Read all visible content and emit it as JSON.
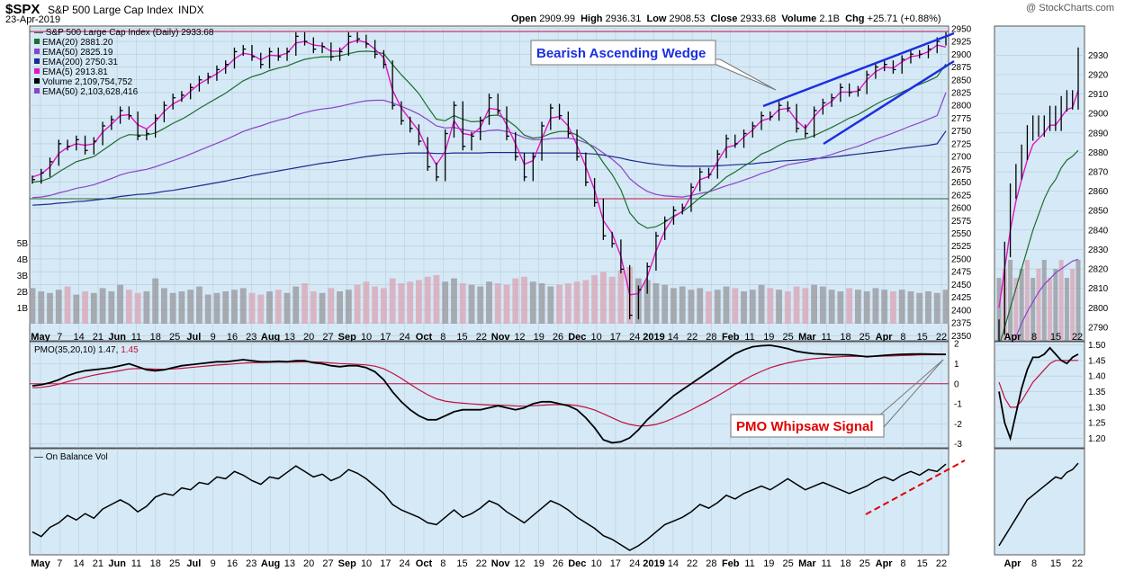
{
  "header": {
    "ticker": "$SPX",
    "name": "S&P 500 Large Cap Index",
    "exchange": "INDX",
    "date": "23-Apr-2019",
    "watermark": "@ StockCharts.com",
    "quote": {
      "open_label": "Open",
      "open": "2909.99",
      "high_label": "High",
      "high": "2936.31",
      "low_label": "Low",
      "low": "2908.53",
      "close_label": "Close",
      "close": "2933.68",
      "volume_label": "Volume",
      "volume": "2.1B",
      "chg_label": "Chg",
      "chg": "+25.71 (+0.88%)"
    }
  },
  "colors": {
    "panel_bg": "#d6e9f6",
    "grid": "#b6c9d8",
    "ema20": "#1a6e2e",
    "ema50": "#8a44c8",
    "ema200": "#1c2a8f",
    "ema5": "#e015c8",
    "volume": "#d9a7b8",
    "volume_dark": "#9a9aa0",
    "pmo": "#000000",
    "pmo_signal": "#c01040",
    "wedge": "#1b2fe0",
    "annotation_red": "#e00000",
    "support": "#1a6e2e",
    "resistance": "#c01040"
  },
  "legend": {
    "title": "S&P 500 Large Cap Index (Daily) 2933.68",
    "items": [
      {
        "label": "EMA(20) 2881.20",
        "color": "#1a6e2e"
      },
      {
        "label": "EMA(50) 2825.19",
        "color": "#8a44c8"
      },
      {
        "label": "EMA(200) 2750.31",
        "color": "#1c2a8f"
      },
      {
        "label": "EMA(5) 2913.81",
        "color": "#e015c8"
      },
      {
        "label": "Volume 2,109,754,752",
        "color": "#000000"
      },
      {
        "label": "EMA(50) 2,103,628,416",
        "color": "#8a44c8"
      }
    ]
  },
  "annotations": {
    "wedge_label": "Bearish Ascending Wedge",
    "whipsaw_label": "PMO Whipsaw Signal"
  },
  "pmo_legend": {
    "name": "PMO(35,20,10)",
    "value1": "1.47",
    "value2": "1.45"
  },
  "obv_legend": {
    "name": "On Balance Vol"
  },
  "chart_data": {
    "type": "line",
    "price_ylim": [
      2340,
      2955
    ],
    "price_ticks": [
      "2950",
      "2925",
      "2900",
      "2875",
      "2850",
      "2825",
      "2800",
      "2775",
      "2750",
      "2725",
      "2700",
      "2675",
      "2650",
      "2625",
      "2600",
      "2575",
      "2550",
      "2525",
      "2500",
      "2475",
      "2450",
      "2425",
      "2400",
      "2375",
      "2350"
    ],
    "volume_ticks": [
      "5B",
      "4B",
      "3B",
      "2B",
      "1B"
    ],
    "pmo_ticks": [
      "2",
      "1",
      "0",
      "-1",
      "-2",
      "-3"
    ],
    "pmo_ylim": [
      -3.2,
      2.1
    ],
    "x_labels": [
      "May",
      "7",
      "14",
      "21",
      "Jun",
      "11",
      "18",
      "25",
      "Jul",
      "9",
      "16",
      "23",
      "Aug",
      "13",
      "20",
      "27",
      "Sep",
      "10",
      "17",
      "24",
      "Oct",
      "8",
      "15",
      "22",
      "Nov",
      "12",
      "19",
      "26",
      "Dec",
      "10",
      "17",
      "24",
      "2019",
      "14",
      "22",
      "28",
      "Feb",
      "11",
      "19",
      "25",
      "Mar",
      "11",
      "18",
      "25",
      "Apr",
      "8",
      "15",
      "22"
    ],
    "close_series": [
      2655,
      2668,
      2690,
      2725,
      2720,
      2733,
      2712,
      2730,
      2760,
      2772,
      2790,
      2780,
      2740,
      2745,
      2775,
      2800,
      2815,
      2820,
      2835,
      2850,
      2856,
      2870,
      2880,
      2905,
      2910,
      2895,
      2880,
      2905,
      2895,
      2905,
      2935,
      2925,
      2910,
      2915,
      2895,
      2905,
      2935,
      2930,
      2920,
      2900,
      2880,
      2800,
      2770,
      2755,
      2730,
      2680,
      2660,
      2745,
      2800,
      2720,
      2740,
      2770,
      2815,
      2790,
      2740,
      2700,
      2660,
      2700,
      2760,
      2795,
      2780,
      2745,
      2700,
      2650,
      2610,
      2545,
      2530,
      2480,
      2390,
      2440,
      2485,
      2545,
      2575,
      2595,
      2600,
      2640,
      2670,
      2665,
      2705,
      2735,
      2725,
      2745,
      2760,
      2780,
      2778,
      2800,
      2795,
      2755,
      2745,
      2790,
      2805,
      2815,
      2835,
      2825,
      2830,
      2860,
      2875,
      2880,
      2870,
      2890,
      2900,
      2900,
      2910,
      2925,
      2935
    ],
    "ema5_series": [
      2660,
      2666,
      2680,
      2706,
      2718,
      2725,
      2722,
      2725,
      2748,
      2763,
      2780,
      2782,
      2762,
      2754,
      2768,
      2788,
      2803,
      2812,
      2828,
      2842,
      2852,
      2862,
      2874,
      2891,
      2902,
      2899,
      2889,
      2898,
      2897,
      2902,
      2922,
      2925,
      2918,
      2916,
      2906,
      2906,
      2922,
      2927,
      2923,
      2910,
      2893,
      2830,
      2795,
      2772,
      2750,
      2712,
      2684,
      2710,
      2770,
      2745,
      2742,
      2757,
      2794,
      2792,
      2762,
      2725,
      2685,
      2692,
      2735,
      2775,
      2778,
      2760,
      2722,
      2680,
      2635,
      2575,
      2550,
      2505,
      2430,
      2432,
      2465,
      2515,
      2555,
      2582,
      2593,
      2624,
      2655,
      2661,
      2690,
      2718,
      2722,
      2738,
      2752,
      2770,
      2775,
      2792,
      2794,
      2770,
      2755,
      2778,
      2797,
      2808,
      2826,
      2826,
      2828,
      2850,
      2866,
      2875,
      2873,
      2885,
      2895,
      2898,
      2905,
      2918,
      2914
    ],
    "ema20_series": [
      2650,
      2652,
      2658,
      2670,
      2680,
      2690,
      2695,
      2700,
      2712,
      2724,
      2736,
      2743,
      2742,
      2742,
      2746,
      2755,
      2765,
      2773,
      2783,
      2794,
      2804,
      2814,
      2824,
      2836,
      2848,
      2856,
      2861,
      2868,
      2873,
      2877,
      2884,
      2890,
      2893,
      2895,
      2895,
      2897,
      2901,
      2905,
      2906,
      2905,
      2901,
      2880,
      2860,
      2842,
      2823,
      2797,
      2773,
      2770,
      2780,
      2773,
      2768,
      2769,
      2780,
      2781,
      2772,
      2759,
      2742,
      2736,
      2738,
      2745,
      2749,
      2749,
      2742,
      2730,
      2714,
      2688,
      2665,
      2635,
      2590,
      2570,
      2560,
      2563,
      2572,
      2584,
      2592,
      2605,
      2620,
      2631,
      2645,
      2660,
      2670,
      2681,
      2692,
      2705,
      2712,
      2722,
      2730,
      2733,
      2735,
      2741,
      2749,
      2757,
      2766,
      2775,
      2782,
      2792,
      2802,
      2811,
      2818,
      2826,
      2834,
      2841,
      2848,
      2856,
      2881
    ],
    "ema50_series": [
      2620,
      2621,
      2624,
      2629,
      2633,
      2638,
      2641,
      2645,
      2651,
      2657,
      2664,
      2669,
      2672,
      2675,
      2680,
      2686,
      2692,
      2698,
      2705,
      2712,
      2719,
      2726,
      2733,
      2741,
      2749,
      2755,
      2760,
      2766,
      2771,
      2775,
      2781,
      2786,
      2790,
      2793,
      2795,
      2798,
      2802,
      2806,
      2809,
      2810,
      2810,
      2805,
      2798,
      2791,
      2783,
      2772,
      2760,
      2756,
      2757,
      2753,
      2750,
      2748,
      2751,
      2752,
      2749,
      2744,
      2737,
      2733,
      2733,
      2735,
      2736,
      2736,
      2733,
      2727,
      2719,
      2707,
      2695,
      2680,
      2657,
      2643,
      2632,
      2626,
      2623,
      2622,
      2621,
      2624,
      2628,
      2631,
      2637,
      2643,
      2648,
      2654,
      2660,
      2667,
      2672,
      2678,
      2684,
      2687,
      2690,
      2694,
      2699,
      2704,
      2710,
      2715,
      2720,
      2727,
      2734,
      2740,
      2746,
      2753,
      2760,
      2766,
      2773,
      2780,
      2825
    ],
    "ema200_series": [
      2605,
      2606,
      2607,
      2609,
      2610,
      2612,
      2613,
      2615,
      2617,
      2619,
      2622,
      2624,
      2626,
      2627,
      2629,
      2632,
      2634,
      2637,
      2640,
      2643,
      2646,
      2649,
      2652,
      2656,
      2659,
      2663,
      2666,
      2669,
      2672,
      2675,
      2678,
      2681,
      2684,
      2687,
      2689,
      2692,
      2694,
      2697,
      2700,
      2702,
      2704,
      2705,
      2706,
      2707,
      2707,
      2707,
      2706,
      2706,
      2707,
      2707,
      2707,
      2707,
      2708,
      2708,
      2708,
      2708,
      2707,
      2707,
      2707,
      2707,
      2707,
      2707,
      2707,
      2706,
      2705,
      2703,
      2700,
      2697,
      2693,
      2690,
      2687,
      2685,
      2683,
      2682,
      2681,
      2681,
      2681,
      2681,
      2682,
      2683,
      2684,
      2685,
      2686,
      2688,
      2689,
      2691,
      2692,
      2693,
      2694,
      2696,
      2697,
      2699,
      2701,
      2703,
      2705,
      2707,
      2709,
      2711,
      2713,
      2716,
      2718,
      2720,
      2722,
      2725,
      2750
    ],
    "volume_series": [
      2.2,
      2.0,
      1.9,
      2.1,
      2.3,
      1.8,
      2.0,
      1.9,
      2.2,
      2.0,
      2.4,
      2.1,
      1.9,
      2.0,
      2.8,
      2.2,
      1.9,
      2.0,
      2.1,
      2.3,
      1.8,
      1.9,
      2.0,
      2.1,
      2.2,
      1.9,
      1.8,
      2.0,
      2.1,
      1.9,
      2.3,
      2.5,
      2.0,
      1.9,
      2.2,
      2.0,
      2.1,
      2.4,
      2.6,
      2.3,
      2.2,
      2.8,
      2.5,
      2.6,
      2.7,
      2.9,
      3.0,
      2.6,
      2.8,
      2.5,
      2.4,
      2.3,
      2.6,
      2.5,
      2.4,
      2.8,
      2.9,
      2.6,
      2.5,
      2.3,
      2.4,
      2.5,
      2.6,
      2.7,
      3.0,
      3.2,
      2.9,
      3.3,
      3.5,
      2.8,
      2.7,
      2.5,
      2.4,
      2.2,
      2.3,
      2.1,
      2.2,
      2.0,
      2.1,
      2.3,
      2.2,
      2.0,
      2.1,
      2.4,
      2.2,
      2.1,
      2.0,
      2.3,
      2.2,
      2.4,
      2.3,
      2.1,
      2.0,
      2.2,
      2.1,
      2.0,
      2.2,
      2.1,
      2.0,
      2.1,
      2.0,
      1.9,
      2.0,
      1.9,
      2.1
    ],
    "pmo_series": [
      -0.1,
      -0.05,
      0.05,
      0.2,
      0.4,
      0.55,
      0.65,
      0.7,
      0.75,
      0.8,
      0.9,
      1.0,
      0.85,
      0.7,
      0.65,
      0.7,
      0.8,
      0.9,
      0.95,
      1.0,
      1.05,
      1.1,
      1.1,
      1.15,
      1.2,
      1.15,
      1.1,
      1.1,
      1.12,
      1.1,
      1.15,
      1.15,
      1.05,
      1.0,
      0.9,
      0.85,
      0.9,
      0.9,
      0.8,
      0.6,
      0.2,
      -0.4,
      -0.9,
      -1.3,
      -1.6,
      -1.8,
      -1.8,
      -1.6,
      -1.4,
      -1.3,
      -1.3,
      -1.3,
      -1.2,
      -1.1,
      -1.2,
      -1.3,
      -1.2,
      -1.0,
      -0.9,
      -0.9,
      -1.0,
      -1.1,
      -1.3,
      -1.7,
      -2.2,
      -2.8,
      -2.95,
      -2.9,
      -2.7,
      -2.3,
      -1.8,
      -1.4,
      -1.0,
      -0.6,
      -0.3,
      0.0,
      0.3,
      0.6,
      0.9,
      1.2,
      1.5,
      1.7,
      1.85,
      1.9,
      1.92,
      1.85,
      1.75,
      1.62,
      1.55,
      1.5,
      1.48,
      1.45,
      1.45,
      1.44,
      1.4,
      1.35,
      1.38,
      1.42,
      1.45,
      1.47,
      1.48,
      1.49,
      1.48,
      1.47,
      1.47
    ],
    "pmo_signal_series": [
      -0.2,
      -0.18,
      -0.12,
      -0.02,
      0.1,
      0.22,
      0.33,
      0.43,
      0.51,
      0.58,
      0.66,
      0.74,
      0.76,
      0.75,
      0.73,
      0.72,
      0.74,
      0.77,
      0.81,
      0.85,
      0.89,
      0.93,
      0.96,
      0.99,
      1.03,
      1.05,
      1.06,
      1.07,
      1.08,
      1.08,
      1.09,
      1.1,
      1.09,
      1.07,
      1.04,
      1.01,
      0.99,
      0.97,
      0.94,
      0.88,
      0.75,
      0.53,
      0.27,
      -0.02,
      -0.3,
      -0.55,
      -0.75,
      -0.87,
      -0.93,
      -0.97,
      -1.01,
      -1.04,
      -1.06,
      -1.07,
      -1.08,
      -1.11,
      -1.12,
      -1.1,
      -1.07,
      -1.05,
      -1.04,
      -1.05,
      -1.09,
      -1.18,
      -1.31,
      -1.5,
      -1.7,
      -1.9,
      -2.03,
      -2.11,
      -2.1,
      -2.03,
      -1.9,
      -1.72,
      -1.52,
      -1.31,
      -1.08,
      -0.85,
      -0.6,
      -0.35,
      -0.08,
      0.18,
      0.42,
      0.62,
      0.8,
      0.93,
      1.04,
      1.13,
      1.2,
      1.25,
      1.29,
      1.32,
      1.35,
      1.37,
      1.37,
      1.37,
      1.37,
      1.38,
      1.39,
      1.41,
      1.42,
      1.44,
      1.45,
      1.45,
      1.45
    ],
    "obv_series": [
      0.2,
      0.15,
      0.25,
      0.3,
      0.38,
      0.33,
      0.4,
      0.35,
      0.45,
      0.5,
      0.55,
      0.5,
      0.42,
      0.48,
      0.58,
      0.62,
      0.6,
      0.68,
      0.66,
      0.74,
      0.72,
      0.8,
      0.78,
      0.86,
      0.82,
      0.76,
      0.72,
      0.8,
      0.78,
      0.85,
      0.92,
      0.86,
      0.8,
      0.83,
      0.76,
      0.8,
      0.88,
      0.84,
      0.78,
      0.7,
      0.62,
      0.5,
      0.44,
      0.4,
      0.36,
      0.3,
      0.28,
      0.36,
      0.44,
      0.36,
      0.4,
      0.46,
      0.54,
      0.5,
      0.42,
      0.36,
      0.3,
      0.38,
      0.46,
      0.54,
      0.5,
      0.44,
      0.36,
      0.3,
      0.24,
      0.16,
      0.12,
      0.06,
      0.0,
      0.05,
      0.12,
      0.2,
      0.28,
      0.32,
      0.36,
      0.42,
      0.5,
      0.46,
      0.52,
      0.6,
      0.56,
      0.62,
      0.66,
      0.7,
      0.66,
      0.72,
      0.78,
      0.72,
      0.66,
      0.7,
      0.74,
      0.7,
      0.66,
      0.62,
      0.66,
      0.7,
      0.76,
      0.8,
      0.76,
      0.82,
      0.86,
      0.82,
      0.88,
      0.86,
      0.94
    ],
    "inset_price_ylim": [
      2783,
      2945
    ],
    "inset_price_ticks": [
      "2930",
      "2920",
      "2910",
      "2900",
      "2890",
      "2880",
      "2870",
      "2860",
      "2850",
      "2840",
      "2830",
      "2820",
      "2810",
      "2800",
      "2790"
    ],
    "inset_x_labels": [
      "Apr",
      "8",
      "15",
      "22"
    ],
    "inset_pmo_ticks": [
      "1.50",
      "1.45",
      "1.40",
      "1.35",
      "1.30",
      "1.25",
      "1.20"
    ],
    "inset_pmo_ylim": [
      1.17,
      1.51
    ],
    "inset_close": [
      2790,
      2830,
      2860,
      2870,
      2880,
      2890,
      2895,
      2892,
      2895,
      2900,
      2895,
      2905,
      2908,
      2906,
      2930
    ],
    "inset_ema5": [
      2800,
      2820,
      2840,
      2855,
      2866,
      2876,
      2884,
      2887,
      2890,
      2894,
      2894,
      2898,
      2902,
      2903,
      2912
    ],
    "inset_ema20": [
      2780,
      2790,
      2800,
      2810,
      2820,
      2830,
      2840,
      2848,
      2856,
      2862,
      2866,
      2872,
      2876,
      2878,
      2881
    ],
    "inset_ema50": [
      2760,
      2770,
      2778,
      2785,
      2792,
      2798,
      2803,
      2808,
      2812,
      2815,
      2818,
      2820,
      2822,
      2824,
      2825
    ],
    "inset_pmo": [
      1.35,
      1.25,
      1.2,
      1.28,
      1.36,
      1.42,
      1.46,
      1.46,
      1.47,
      1.49,
      1.47,
      1.45,
      1.44,
      1.46,
      1.47
    ],
    "inset_pmo_signal": [
      1.38,
      1.33,
      1.3,
      1.3,
      1.32,
      1.35,
      1.38,
      1.4,
      1.42,
      1.44,
      1.45,
      1.45,
      1.45,
      1.45,
      1.45
    ],
    "inset_obv": [
      0.05,
      0.15,
      0.25,
      0.35,
      0.45,
      0.55,
      0.6,
      0.65,
      0.7,
      0.75,
      0.8,
      0.78,
      0.85,
      0.88,
      0.95
    ]
  }
}
